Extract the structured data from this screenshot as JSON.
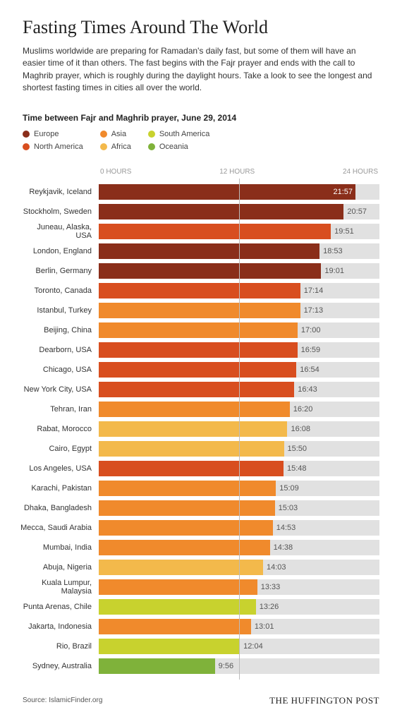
{
  "title": "Fasting Times Around The World",
  "description": "Muslims worldwide are preparing for Ramadan's daily fast, but some of them will have an easier time of it than others. The fast begins with the Fajr prayer and ends with the call to Maghrib prayer, which is roughly during the daylight hours. Take a look to see the longest and shortest fasting times in cities all over the world.",
  "subtitle": "Time between Fajr and Maghrib prayer, June 29, 2014",
  "legend": [
    {
      "label": "Europe",
      "color": "#8a2e1a"
    },
    {
      "label": "North America",
      "color": "#d84e1f"
    },
    {
      "label": "Asia",
      "color": "#f08a2c"
    },
    {
      "label": "Africa",
      "color": "#f3b94b"
    },
    {
      "label": "South America",
      "color": "#c8d22e"
    },
    {
      "label": "Oceania",
      "color": "#7fb23a"
    }
  ],
  "axis": {
    "min": 0,
    "max": 24,
    "labels": [
      "0 HOURS",
      "12 HOURS",
      "24 HOURS"
    ]
  },
  "track_color": "#e1e1e1",
  "rows": [
    {
      "label": "Reykjavik, Iceland",
      "value": "21:57",
      "hours": 21.95,
      "region": "Europe",
      "value_inside": true
    },
    {
      "label": "Stockholm, Sweden",
      "value": "20:57",
      "hours": 20.95,
      "region": "Europe"
    },
    {
      "label": "Juneau, Alaska, USA",
      "value": "19:51",
      "hours": 19.85,
      "region": "North America"
    },
    {
      "label": "London, England",
      "value": "18:53",
      "hours": 18.88,
      "region": "Europe"
    },
    {
      "label": "Berlin, Germany",
      "value": "19:01",
      "hours": 19.02,
      "region": "Europe"
    },
    {
      "label": "Toronto, Canada",
      "value": "17:14",
      "hours": 17.23,
      "region": "North America"
    },
    {
      "label": "Istanbul, Turkey",
      "value": "17:13",
      "hours": 17.22,
      "region": "Asia"
    },
    {
      "label": "Beijing, China",
      "value": "17:00",
      "hours": 17.0,
      "region": "Asia"
    },
    {
      "label": "Dearborn, USA",
      "value": "16:59",
      "hours": 16.98,
      "region": "North America"
    },
    {
      "label": "Chicago, USA",
      "value": "16:54",
      "hours": 16.9,
      "region": "North America"
    },
    {
      "label": "New York City, USA",
      "value": "16:43",
      "hours": 16.72,
      "region": "North America"
    },
    {
      "label": "Tehran, Iran",
      "value": "16:20",
      "hours": 16.33,
      "region": "Asia"
    },
    {
      "label": "Rabat, Morocco",
      "value": "16:08",
      "hours": 16.13,
      "region": "Africa"
    },
    {
      "label": "Cairo, Egypt",
      "value": "15:50",
      "hours": 15.83,
      "region": "Africa"
    },
    {
      "label": "Los Angeles, USA",
      "value": "15:48",
      "hours": 15.8,
      "region": "North America"
    },
    {
      "label": "Karachi, Pakistan",
      "value": "15:09",
      "hours": 15.15,
      "region": "Asia"
    },
    {
      "label": "Dhaka, Bangladesh",
      "value": "15:03",
      "hours": 15.05,
      "region": "Asia"
    },
    {
      "label": "Mecca, Saudi Arabia",
      "value": "14:53",
      "hours": 14.88,
      "region": "Asia"
    },
    {
      "label": "Mumbai, India",
      "value": "14:38",
      "hours": 14.63,
      "region": "Asia"
    },
    {
      "label": "Abuja, Nigeria",
      "value": "14:03",
      "hours": 14.05,
      "region": "Africa"
    },
    {
      "label": "Kuala Lumpur, Malaysia",
      "value": "13:33",
      "hours": 13.55,
      "region": "Asia"
    },
    {
      "label": "Punta Arenas, Chile",
      "value": "13:26",
      "hours": 13.43,
      "region": "South America"
    },
    {
      "label": "Jakarta, Indonesia",
      "value": "13:01",
      "hours": 13.02,
      "region": "Asia"
    },
    {
      "label": "Rio, Brazil",
      "value": "12:04",
      "hours": 12.07,
      "region": "South America"
    },
    {
      "label": "Sydney, Australia",
      "value": "9:56",
      "hours": 9.93,
      "region": "Oceania"
    }
  ],
  "source": "Source: IslamicFinder.org",
  "brand": "THE HUFFINGTON POST"
}
